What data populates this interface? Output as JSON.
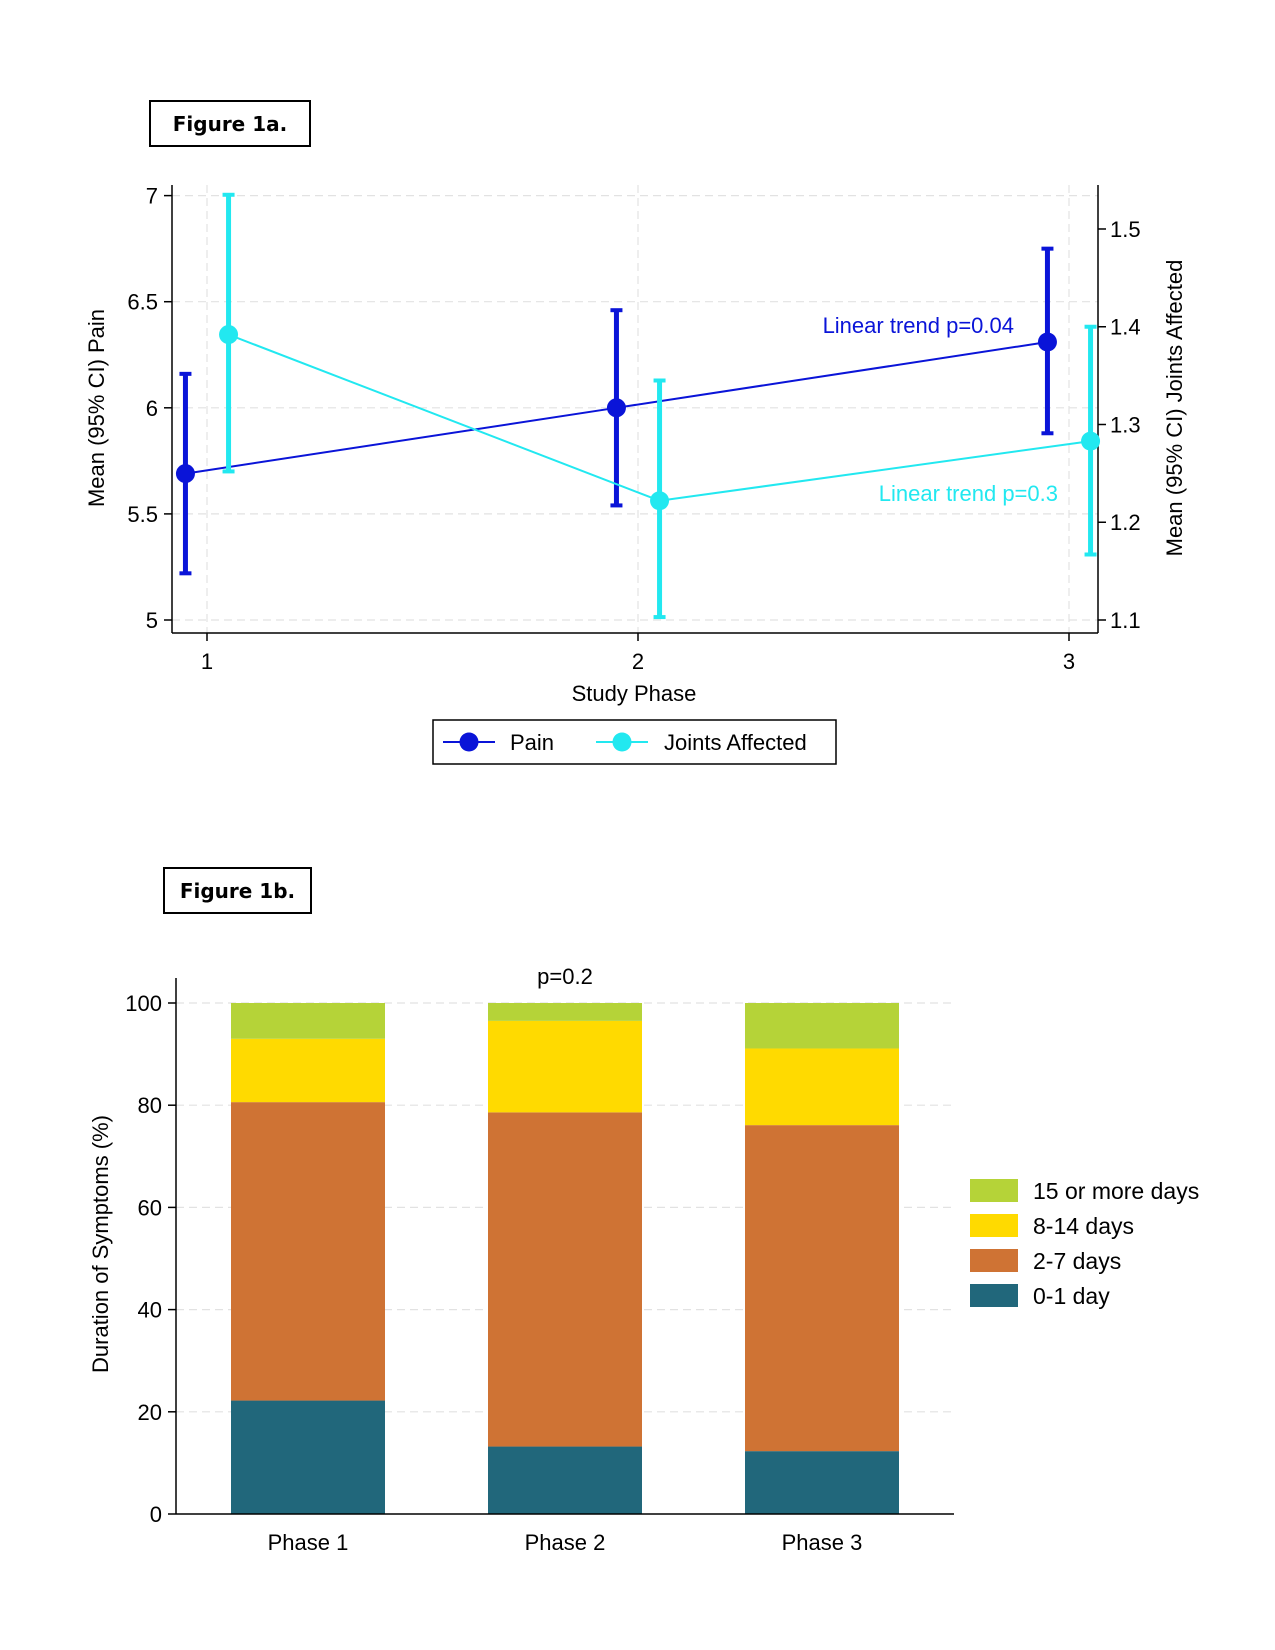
{
  "figure_labels": {
    "fig1a": "Figure 1a.",
    "fig1b": "Figure 1b."
  },
  "colors": {
    "pain": "#0a14d8",
    "joints": "#22e8f0",
    "d15": "#b5d338",
    "d8": "#ffda00",
    "d2": "#cf7334",
    "d0": "#21677b",
    "axis": "#000000",
    "grid": "#e2e2e2"
  },
  "chart_data": [
    {
      "type": "line",
      "xlabel": "Study Phase",
      "ylabel": "Mean (95% CI) Pain",
      "y2label": "Mean (95% CI) Joints Affected",
      "x_ticks": [
        "1",
        "2",
        "3"
      ],
      "y_ticks": [
        "5",
        "5.5",
        "6",
        "6.5",
        "7"
      ],
      "y2_ticks": [
        "1.1",
        "1.2",
        "1.3",
        "1.4",
        "1.5"
      ],
      "ylim": [
        5,
        7.05
      ],
      "y2lim": [
        1.1,
        1.545
      ],
      "grid": true,
      "legend_position": "bottom",
      "series": [
        {
          "name": "Pain",
          "axis": "left",
          "color_key": "pain",
          "x": [
            1,
            2,
            3
          ],
          "offset": -0.05,
          "mean": [
            5.69,
            6.0,
            6.31
          ],
          "ci_low": [
            5.22,
            5.54,
            5.88
          ],
          "ci_high": [
            6.16,
            6.46,
            6.75
          ]
        },
        {
          "name": "Joints Affected",
          "axis": "right",
          "color_key": "joints",
          "x": [
            1,
            2,
            3
          ],
          "offset": 0.05,
          "mean": [
            1.392,
            1.222,
            1.283
          ],
          "ci_low": [
            1.252,
            1.103,
            1.167
          ],
          "ci_high": [
            1.535,
            1.345,
            1.4
          ]
        }
      ],
      "annotations": [
        {
          "text": "Linear trend p=0.04",
          "color_key": "pain"
        },
        {
          "text": "Linear trend p=0.3",
          "color_key": "joints"
        }
      ]
    },
    {
      "type": "bar",
      "stacked": true,
      "title": "p=0.2",
      "ylabel": "Duration of Symptoms (%)",
      "categories": [
        "Phase 1",
        "Phase 2",
        "Phase 3"
      ],
      "y_ticks": [
        "0",
        "20",
        "40",
        "60",
        "80",
        "100"
      ],
      "ylim": [
        0,
        100
      ],
      "grid": true,
      "legend_position": "right",
      "series": [
        {
          "name": "0-1 day",
          "color_key": "d0",
          "values": [
            22.2,
            13.2,
            12.3
          ]
        },
        {
          "name": "2-7 days",
          "color_key": "d2",
          "values": [
            58.4,
            65.4,
            63.8
          ]
        },
        {
          "name": "8-14 days",
          "color_key": "d8",
          "values": [
            12.4,
            17.9,
            15.0
          ]
        },
        {
          "name": "15 or more days",
          "color_key": "d15",
          "values": [
            7.0,
            3.5,
            8.9
          ]
        }
      ],
      "legend_order": [
        "15 or more days",
        "8-14 days",
        "2-7 days",
        "0-1 day"
      ]
    }
  ]
}
